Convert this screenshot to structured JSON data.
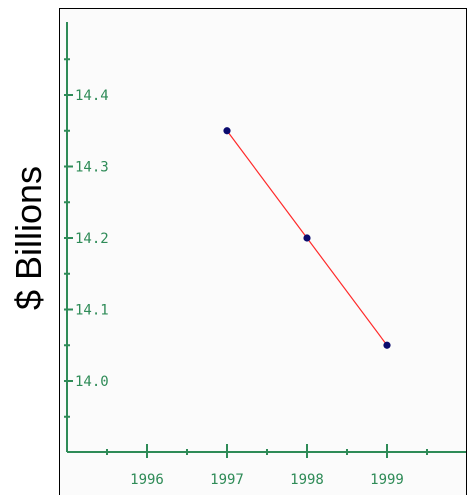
{
  "chart_data": {
    "type": "line",
    "ylabel": "$ Billions",
    "xlabel": "",
    "title": "",
    "x": [
      1997,
      1998,
      1999
    ],
    "series": [
      {
        "values": [
          14.35,
          14.2,
          14.05
        ]
      }
    ],
    "xlim": [
      1995.0,
      2000.0
    ],
    "ylim": [
      13.9,
      14.5
    ],
    "x_ticks": [
      1996,
      1997,
      1998,
      1999
    ],
    "y_ticks": [
      14.0,
      14.1,
      14.2,
      14.3,
      14.4
    ],
    "x_tick_labels": [
      "1996",
      "1997",
      "1998",
      "1999"
    ],
    "y_tick_labels": [
      "14.0",
      "14.1",
      "14.2",
      "14.3",
      "14.4"
    ],
    "grid": false,
    "colors": {
      "line": "#ff2a2a",
      "marker": "#0b0b6e",
      "axis": "#2e8b57"
    }
  }
}
